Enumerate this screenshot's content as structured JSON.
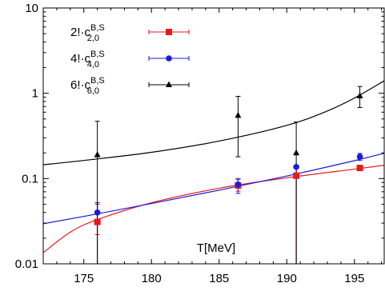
{
  "chart_data": {
    "type": "scatter",
    "xlabel": "T[MeV]",
    "ylabel": "",
    "xlim": [
      172,
      197.2
    ],
    "ylim": [
      0.01,
      10
    ],
    "y_scale": "log",
    "x_ticks": [
      175,
      180,
      185,
      190,
      195
    ],
    "x_tick_labels": [
      "175",
      "180",
      "185",
      "190",
      "195"
    ],
    "y_ticks": [
      0.01,
      0.1,
      1,
      10
    ],
    "y_tick_labels": [
      "0.01",
      "0.1",
      "1",
      "10"
    ],
    "grid": false,
    "legend_position": "top-left",
    "series": [
      {
        "legend": {
          "prefix": "2!·c",
          "sup": "B,S",
          "sub": "2,0"
        },
        "color": "#e8191c",
        "marker": "square",
        "points": [
          {
            "x": 176.0,
            "y": 0.031,
            "err_lo": 0.022,
            "err_hi": 0.05
          },
          {
            "x": 186.4,
            "y": 0.083,
            "err_lo": 0.071,
            "err_hi": 0.097
          },
          {
            "x": 190.7,
            "y": 0.108,
            "err_lo": 0.01,
            "err_hi": 0.108
          },
          {
            "x": 195.4,
            "y": 0.133,
            "err_lo": 0.127,
            "err_hi": 0.14
          }
        ],
        "fit": [
          [
            172.0,
            0.0135
          ],
          [
            174.0,
            0.0235
          ],
          [
            176.0,
            0.033
          ],
          [
            180.0,
            0.052
          ],
          [
            185.0,
            0.077
          ],
          [
            190.0,
            0.102
          ],
          [
            195.0,
            0.129
          ],
          [
            197.2,
            0.143
          ]
        ]
      },
      {
        "legend": {
          "prefix": "4!·c",
          "sup": "B,S",
          "sub": "4,0"
        },
        "color": "#1a1ae0",
        "marker": "circle",
        "points": [
          {
            "x": 176.0,
            "y": 0.04,
            "err_lo": 0.01,
            "err_hi": 0.052
          },
          {
            "x": 186.4,
            "y": 0.085,
            "err_lo": 0.067,
            "err_hi": 0.1
          },
          {
            "x": 190.7,
            "y": 0.137,
            "err_lo": 0.01,
            "err_hi": 0.137
          },
          {
            "x": 195.4,
            "y": 0.18,
            "err_lo": 0.163,
            "err_hi": 0.197
          }
        ],
        "fit": [
          [
            172.0,
            0.0295
          ],
          [
            175.0,
            0.036
          ],
          [
            180.0,
            0.051
          ],
          [
            185.0,
            0.073
          ],
          [
            190.0,
            0.107
          ],
          [
            195.0,
            0.162
          ],
          [
            197.2,
            0.198
          ]
        ]
      },
      {
        "legend": {
          "prefix": "6!·c",
          "sup": "B,S",
          "sub": "6,0"
        },
        "color": "#000000",
        "marker": "triangle",
        "points": [
          {
            "x": 176.0,
            "y": 0.19,
            "err_lo": 0.01,
            "err_hi": 0.47
          },
          {
            "x": 186.4,
            "y": 0.55,
            "err_lo": 0.18,
            "err_hi": 0.92
          },
          {
            "x": 190.7,
            "y": 0.2,
            "err_lo": 0.01,
            "err_hi": 0.46
          },
          {
            "x": 195.4,
            "y": 0.93,
            "err_lo": 0.68,
            "err_hi": 1.2
          }
        ],
        "fit": [
          [
            172.0,
            0.145
          ],
          [
            175.0,
            0.163
          ],
          [
            180.0,
            0.203
          ],
          [
            185.0,
            0.275
          ],
          [
            190.0,
            0.42
          ],
          [
            193.0,
            0.62
          ],
          [
            195.0,
            0.88
          ],
          [
            197.2,
            1.4
          ]
        ]
      }
    ]
  }
}
